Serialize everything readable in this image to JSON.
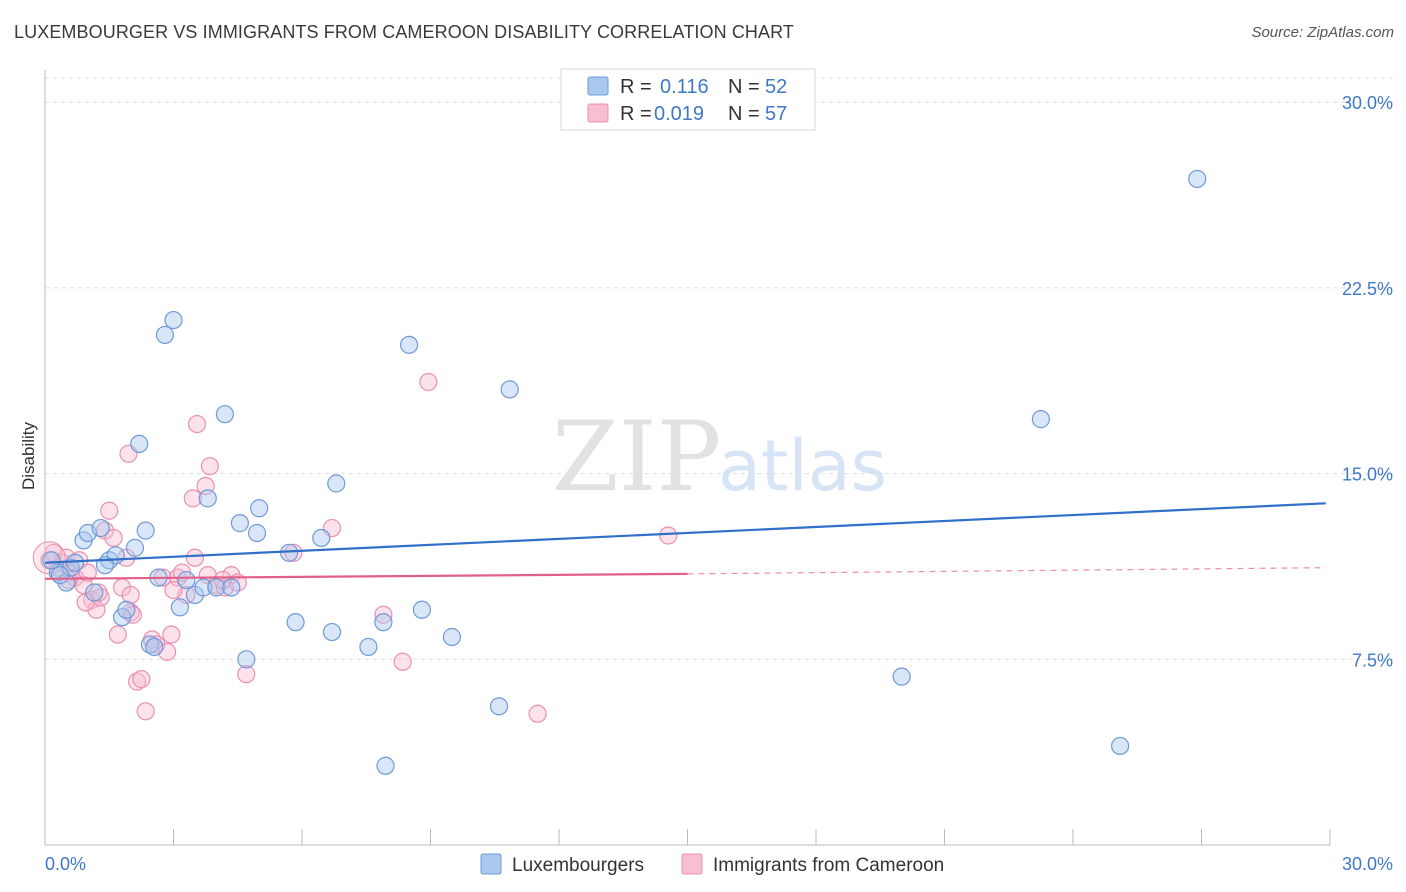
{
  "header": {
    "title": "LUXEMBOURGER VS IMMIGRANTS FROM CAMEROON DISABILITY CORRELATION CHART",
    "source": "Source: ZipAtlas.com"
  },
  "watermark": {
    "zip": "ZIP",
    "atlas": "atlas"
  },
  "legend": {
    "rows": [
      {
        "r_label": "R =",
        "r_value": "0.116",
        "n_label": "N =",
        "n_value": "52"
      },
      {
        "r_label": "R =",
        "r_value": "0.019",
        "n_label": "N =",
        "n_value": "57"
      }
    ]
  },
  "bottom_legend": [
    "Luxembourgers",
    "Immigrants from Cameroon"
  ],
  "colors": {
    "blue": "#3070c8",
    "blue_fill": "#a9c8ef",
    "blue_stroke": "#6f9ad8",
    "pink": "#e0608a",
    "pink_fill": "#f7bfd2",
    "pink_stroke": "#ec8fb0",
    "grid": "#dddddd",
    "tick_label": "#3f78c8"
  },
  "chart_data": {
    "type": "scatter",
    "title": "LUXEMBOURGER VS IMMIGRANTS FROM CAMEROON DISABILITY CORRELATION CHART",
    "xlabel": "",
    "ylabel": "Disability",
    "xlim": [
      0,
      30
    ],
    "ylim": [
      0,
      31.3
    ],
    "x_tick_labels": [
      "0.0%",
      "30.0%"
    ],
    "y_ticks": [
      7.5,
      15.0,
      22.5,
      30.0
    ],
    "y_tick_labels": [
      "7.5%",
      "15.0%",
      "22.5%",
      "30.0%"
    ],
    "grid": true,
    "series": [
      {
        "name": "Luxembourgers",
        "color": "#3070c8",
        "r": 0.116,
        "n": 52,
        "trend": {
          "x0": 0,
          "y0": 11.4,
          "x1": 29.9,
          "y1": 13.8
        },
        "points": [
          [
            0.3,
            11.0
          ],
          [
            0.5,
            10.6
          ],
          [
            0.6,
            11.2
          ],
          [
            0.7,
            11.4
          ],
          [
            0.9,
            12.3
          ],
          [
            1.0,
            12.6
          ],
          [
            1.15,
            10.2
          ],
          [
            1.3,
            12.8
          ],
          [
            1.5,
            11.5
          ],
          [
            1.65,
            11.7
          ],
          [
            1.8,
            9.2
          ],
          [
            1.9,
            9.5
          ],
          [
            2.1,
            12.0
          ],
          [
            2.2,
            16.2
          ],
          [
            2.35,
            12.7
          ],
          [
            2.45,
            8.1
          ],
          [
            2.65,
            10.8
          ],
          [
            2.8,
            20.6
          ],
          [
            3.0,
            21.2
          ],
          [
            3.15,
            9.6
          ],
          [
            3.3,
            10.7
          ],
          [
            3.5,
            10.1
          ],
          [
            3.7,
            10.4
          ],
          [
            3.8,
            14.0
          ],
          [
            4.0,
            10.4
          ],
          [
            4.2,
            17.4
          ],
          [
            4.35,
            10.4
          ],
          [
            4.55,
            13.0
          ],
          [
            4.7,
            7.5
          ],
          [
            4.95,
            12.6
          ],
          [
            5.0,
            13.6
          ],
          [
            5.7,
            11.8
          ],
          [
            5.85,
            9.0
          ],
          [
            6.45,
            12.4
          ],
          [
            6.7,
            8.6
          ],
          [
            6.8,
            14.6
          ],
          [
            7.55,
            8.0
          ],
          [
            7.9,
            9.0
          ],
          [
            7.95,
            3.2
          ],
          [
            8.5,
            20.2
          ],
          [
            8.8,
            9.5
          ],
          [
            9.5,
            8.4
          ],
          [
            10.6,
            5.6
          ],
          [
            10.85,
            18.4
          ],
          [
            20.0,
            6.8
          ],
          [
            23.25,
            17.2
          ],
          [
            25.1,
            4.0
          ],
          [
            26.9,
            26.9
          ],
          [
            0.15,
            11.5
          ],
          [
            0.35,
            10.9
          ],
          [
            1.4,
            11.3
          ],
          [
            2.55,
            8.0
          ]
        ]
      },
      {
        "name": "Immigrants from Cameroon",
        "color": "#e0608a",
        "r": 0.019,
        "n": 57,
        "trend": {
          "x0": 0,
          "y0": 10.75,
          "x1": 15.0,
          "y1": 10.95,
          "dash_x1": 29.9,
          "dash_y1": 11.2
        },
        "points": [
          [
            0.1,
            11.5
          ],
          [
            0.2,
            11.8
          ],
          [
            0.3,
            11.2
          ],
          [
            0.4,
            11.4
          ],
          [
            0.5,
            11.6
          ],
          [
            0.6,
            11.0
          ],
          [
            0.7,
            10.8
          ],
          [
            0.8,
            11.5
          ],
          [
            0.9,
            10.5
          ],
          [
            1.0,
            11.0
          ],
          [
            1.1,
            9.9
          ],
          [
            1.2,
            9.5
          ],
          [
            1.3,
            10.0
          ],
          [
            1.4,
            12.7
          ],
          [
            1.5,
            13.5
          ],
          [
            1.6,
            12.4
          ],
          [
            1.7,
            8.5
          ],
          [
            1.8,
            10.4
          ],
          [
            1.9,
            11.6
          ],
          [
            2.0,
            10.1
          ],
          [
            1.95,
            15.8
          ],
          [
            2.0,
            9.4
          ],
          [
            2.15,
            6.6
          ],
          [
            2.25,
            6.7
          ],
          [
            2.35,
            5.4
          ],
          [
            2.5,
            8.3
          ],
          [
            2.6,
            8.1
          ],
          [
            2.75,
            10.8
          ],
          [
            2.85,
            7.8
          ],
          [
            2.95,
            8.5
          ],
          [
            3.1,
            10.8
          ],
          [
            3.2,
            11.0
          ],
          [
            3.3,
            10.1
          ],
          [
            3.45,
            14.0
          ],
          [
            3.5,
            11.6
          ],
          [
            3.55,
            17.0
          ],
          [
            3.75,
            14.5
          ],
          [
            3.85,
            15.3
          ],
          [
            3.8,
            10.9
          ],
          [
            4.0,
            10.5
          ],
          [
            4.2,
            10.4
          ],
          [
            4.35,
            10.9
          ],
          [
            4.5,
            10.6
          ],
          [
            4.7,
            6.9
          ],
          [
            5.8,
            11.8
          ],
          [
            6.7,
            12.8
          ],
          [
            7.9,
            9.3
          ],
          [
            8.35,
            7.4
          ],
          [
            8.95,
            18.7
          ],
          [
            11.5,
            5.3
          ],
          [
            14.55,
            12.5
          ],
          [
            0.55,
            10.7
          ],
          [
            0.95,
            9.8
          ],
          [
            1.25,
            10.2
          ],
          [
            2.05,
            9.3
          ],
          [
            3.0,
            10.3
          ],
          [
            4.15,
            10.7
          ]
        ]
      }
    ]
  }
}
